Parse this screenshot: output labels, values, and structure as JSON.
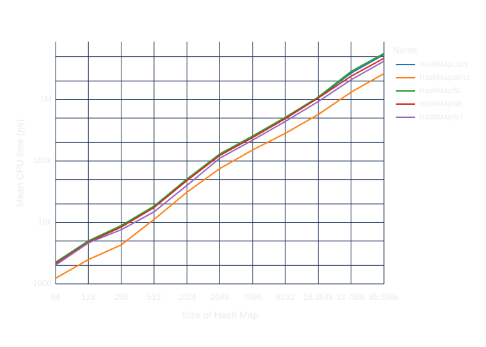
{
  "chart_data": {
    "type": "line",
    "x_label": "Size of Hash Map",
    "y_label": "Mean CPU time (ns)",
    "x": [
      64,
      128,
      256,
      512,
      1024,
      2048,
      4096,
      8192,
      16384,
      32768,
      65536
    ],
    "x_log_base": 2,
    "xlim": [
      64,
      65536
    ],
    "xticks": [
      64,
      128,
      256,
      512,
      1024,
      2048,
      4096,
      8192,
      {
        "value": 16384,
        "label": "16.384k"
      },
      {
        "value": 32768,
        "label": "32.768k"
      },
      {
        "value": 65536,
        "label": "65.536k"
      }
    ],
    "y_log": true,
    "ylim": [
      1000,
      8770000
    ],
    "yticks": [
      1000,
      {
        "value": 10000,
        "label": "10k"
      },
      {
        "value": 100000,
        "label": "100k"
      },
      {
        "value": 1000000,
        "label": "1M"
      }
    ],
    "y_minor_grid": [
      2000,
      5000,
      20000,
      50000,
      200000,
      500000,
      2000000,
      5000000
    ],
    "grid": true,
    "legend_title": "Name",
    "legend_position": "right",
    "series": [
      {
        "name": "HashMapLazy",
        "color": "#1f77b4",
        "values": [
          2200,
          4900,
          8700,
          18000,
          50000,
          128000,
          250000,
          505000,
          1080000,
          2700000,
          5400000
        ]
      },
      {
        "name": "HashMapStrict",
        "color": "#ff7f0e",
        "values": [
          1230,
          2480,
          4300,
          11200,
          31000,
          75000,
          151000,
          283000,
          571000,
          1320000,
          2650000
        ]
      },
      {
        "name": "HashMapSL",
        "color": "#2ca02c",
        "values": [
          2240,
          5000,
          8900,
          18400,
          50800,
          130000,
          255000,
          515000,
          1100000,
          2870000,
          5630000
        ]
      },
      {
        "name": "HashMapSB",
        "color": "#d62728",
        "values": [
          2130,
          4760,
          8400,
          17500,
          48000,
          123000,
          241000,
          490000,
          1060000,
          2400000,
          4700000
        ]
      },
      {
        "name": "HashMapBU",
        "color": "#9467bd",
        "values": [
          2020,
          4640,
          7600,
          14900,
          40000,
          111000,
          218000,
          442000,
          930000,
          2100000,
          4200000
        ]
      }
    ]
  }
}
